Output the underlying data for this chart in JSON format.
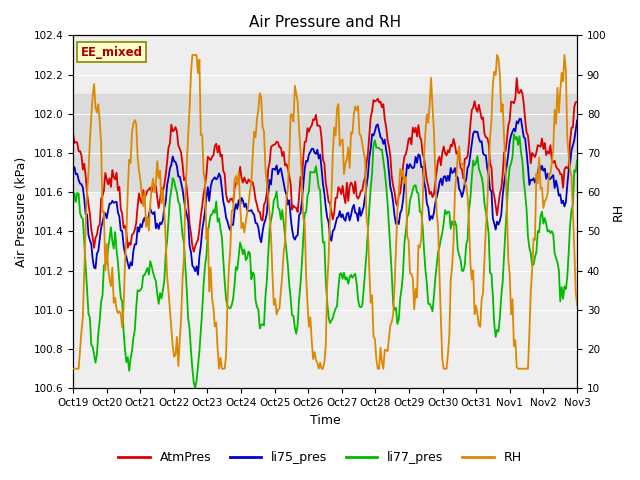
{
  "title": "Air Pressure and RH",
  "xlabel": "Time",
  "ylabel_left": "Air Pressure (kPa)",
  "ylabel_right": "RH",
  "label_box": "EE_mixed",
  "ylim_left": [
    100.6,
    102.4
  ],
  "ylim_right": [
    10,
    100
  ],
  "yticks_left": [
    100.6,
    100.8,
    101.0,
    101.2,
    101.4,
    101.6,
    101.8,
    102.0,
    102.2,
    102.4
  ],
  "yticks_right": [
    10,
    20,
    30,
    40,
    50,
    60,
    70,
    80,
    90,
    100
  ],
  "xtick_labels": [
    "Oct 19",
    "Oct 20",
    "Oct 21",
    "Oct 22",
    "Oct 23",
    "Oct 24",
    "Oct 25",
    "Oct 26",
    "Oct 27",
    "Oct 28",
    "Oct 29",
    "Oct 30",
    "Oct 31",
    "Nov 1",
    "Nov 2",
    "Nov 3"
  ],
  "colors": {
    "AtmPres": "#dd0000",
    "li75_pres": "#0000cc",
    "li77_pres": "#00bb00",
    "RH": "#dd8800"
  },
  "shaded_region": [
    101.6,
    102.1
  ],
  "plot_bg_color": "#eeeeee",
  "linewidth": 1.3,
  "title_fontsize": 11,
  "axis_fontsize": 9,
  "tick_fontsize": 7.5,
  "legend_fontsize": 9
}
